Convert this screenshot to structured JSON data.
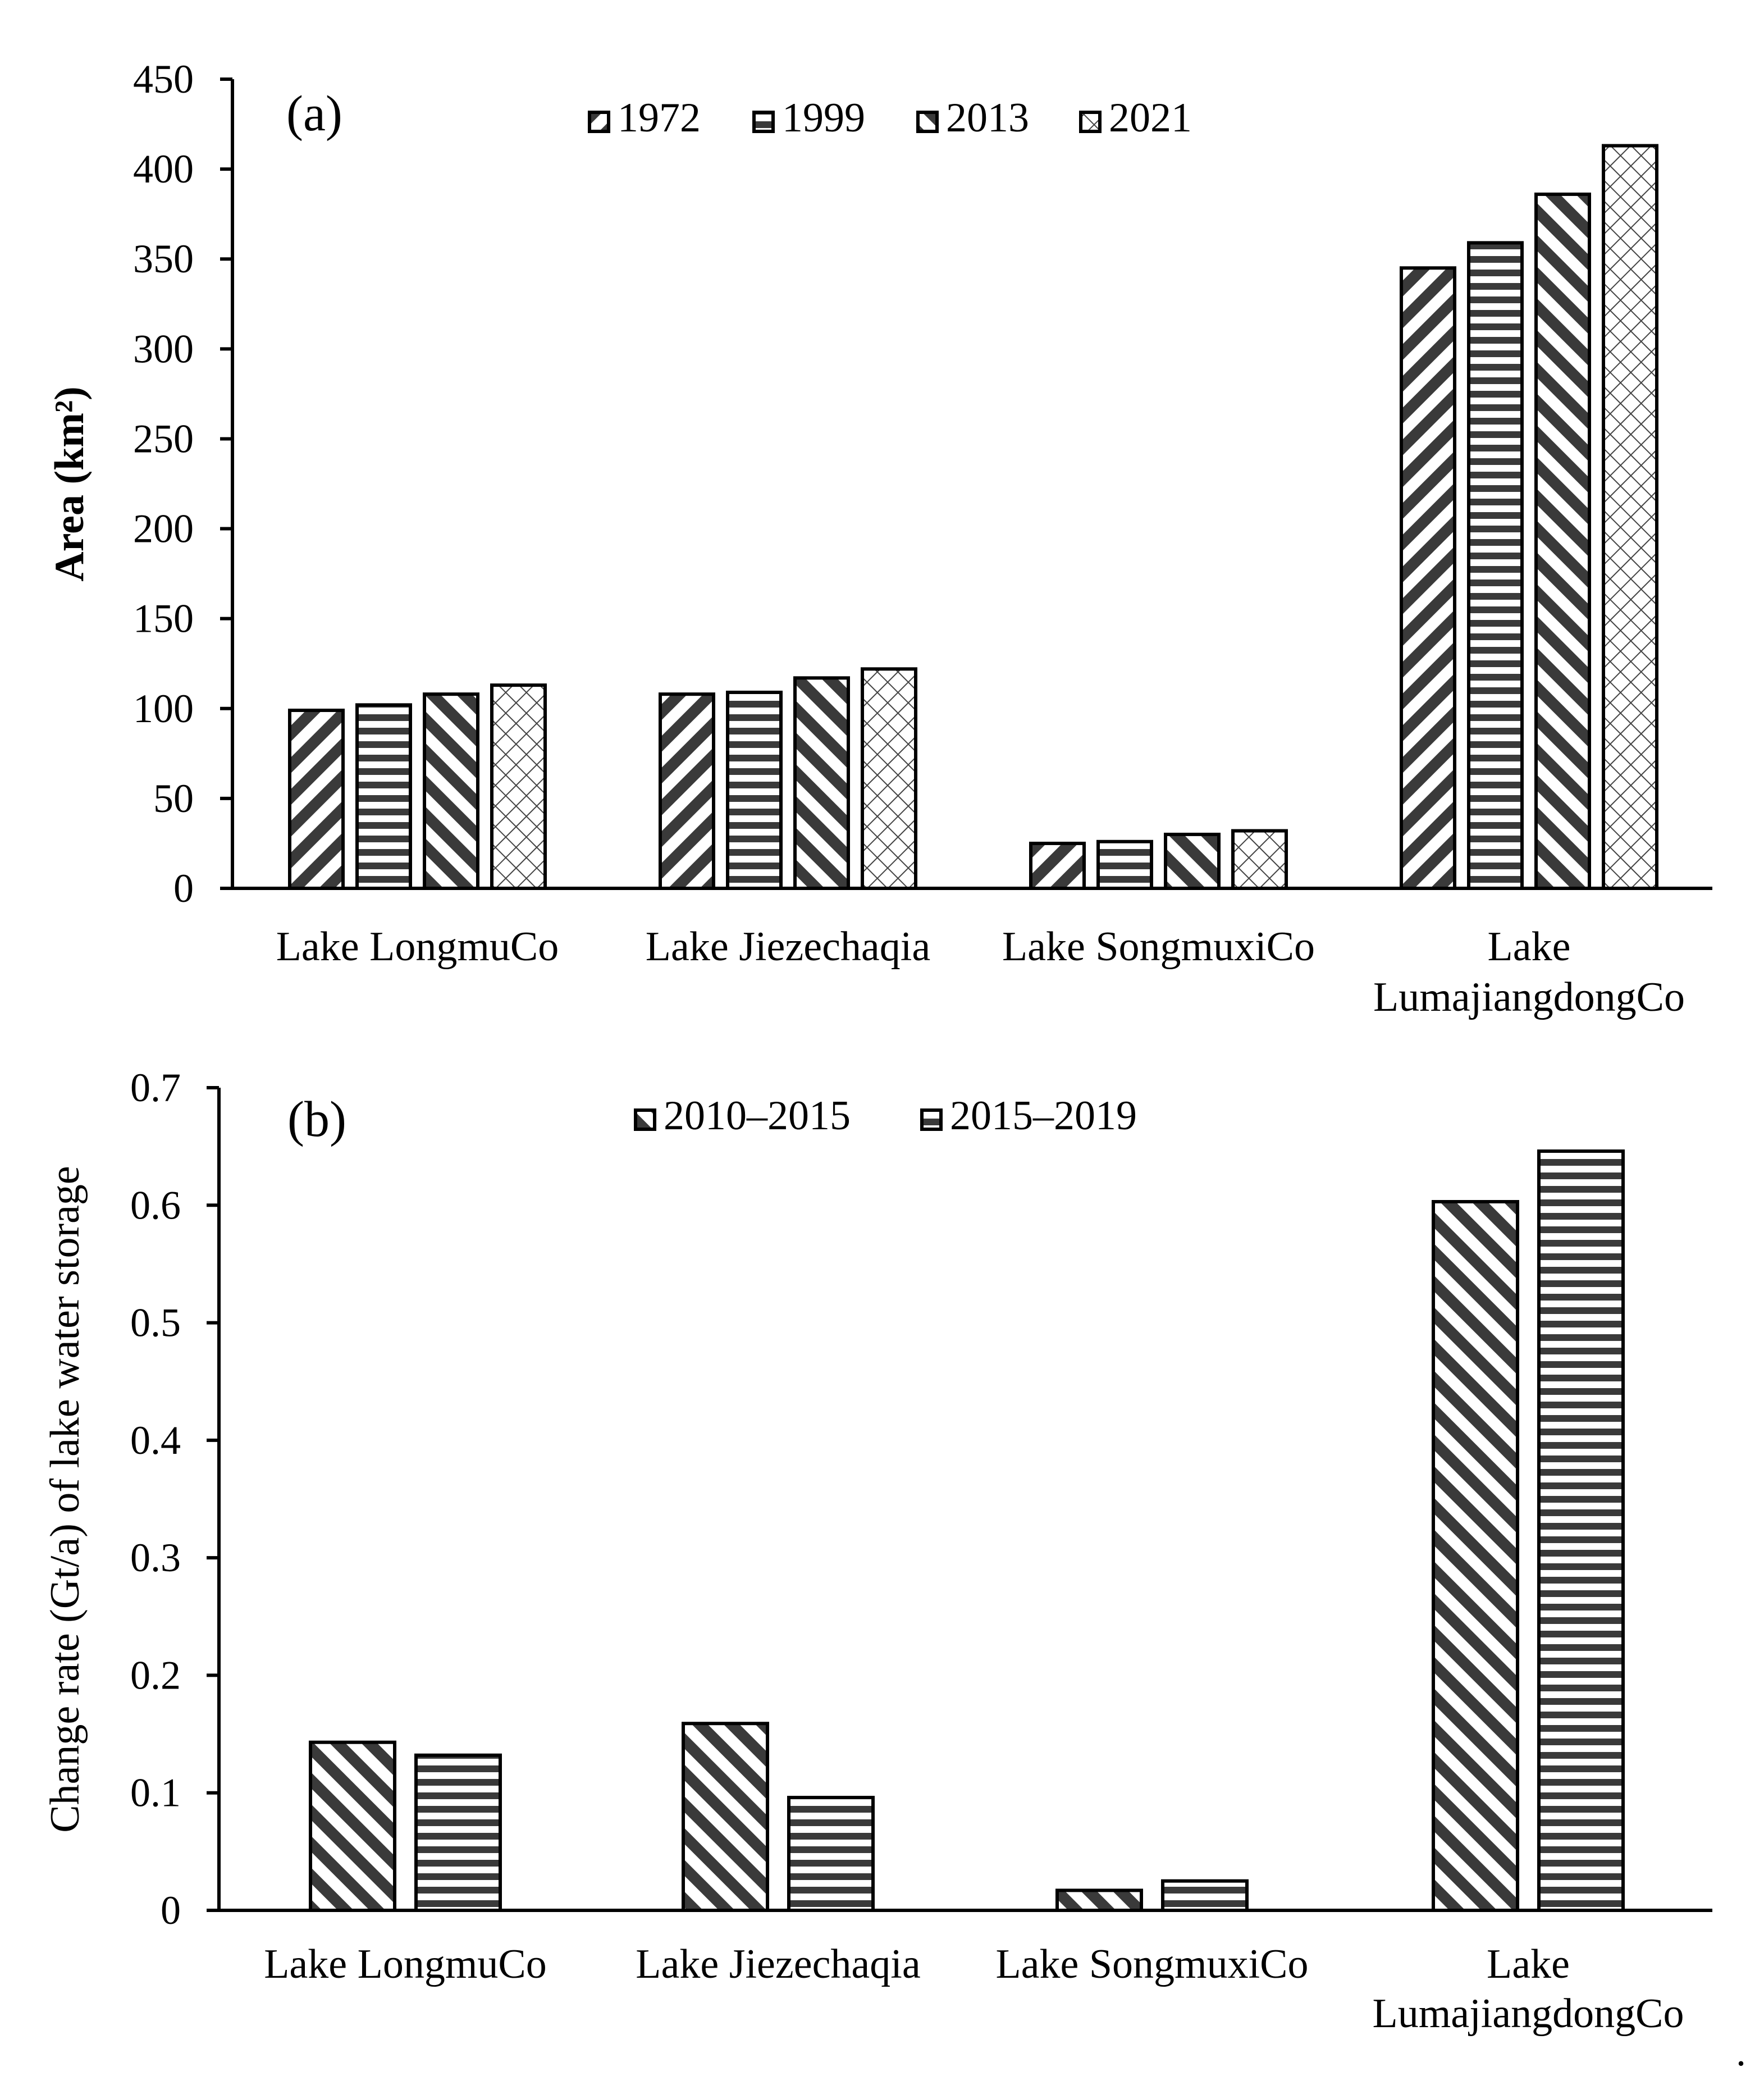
{
  "chart_data": [
    {
      "type": "bar",
      "panel_label": "(a)",
      "ylabel": "Area (km²)",
      "ylim": [
        0,
        450
      ],
      "yticks": [
        "0",
        "50",
        "100",
        "150",
        "200",
        "250",
        "300",
        "350",
        "400",
        "450"
      ],
      "categories": [
        "Lake LongmuCo",
        "Lake Jiezechaqia",
        "Lake SongmuxiCo",
        "Lake LumajiangdongCo"
      ],
      "category_lines": [
        [
          "Lake LongmuCo"
        ],
        [
          "Lake Jiezechaqia"
        ],
        [
          "Lake SongmuxiCo"
        ],
        [
          "Lake",
          "LumajiangdongCo"
        ]
      ],
      "legend_position": "top-center",
      "series": [
        {
          "name": "1972",
          "pattern": "back-diagonal",
          "values": [
            99,
            108,
            25,
            345
          ]
        },
        {
          "name": "1999",
          "pattern": "horizontal",
          "values": [
            102,
            109,
            26,
            359
          ]
        },
        {
          "name": "2013",
          "pattern": "forward-diagonal",
          "values": [
            108,
            117,
            30,
            386
          ]
        },
        {
          "name": "2021",
          "pattern": "crosshatch",
          "values": [
            113,
            122,
            32,
            413
          ]
        }
      ]
    },
    {
      "type": "bar",
      "panel_label": "(b)",
      "ylabel": "Change rate (Gt/a) of lake water storage",
      "ylim": [
        0,
        0.7
      ],
      "yticks": [
        "0",
        "0.1",
        "0.2",
        "0.3",
        "0.4",
        "0.5",
        "0.6",
        "0.7"
      ],
      "categories": [
        "Lake LongmuCo",
        "Lake Jiezechaqia",
        "Lake SongmuxiCo",
        "Lake LumajiangdongCo"
      ],
      "category_lines": [
        [
          "Lake LongmuCo"
        ],
        [
          "Lake Jiezechaqia"
        ],
        [
          "Lake SongmuxiCo"
        ],
        [
          "Lake",
          "LumajiangdongCo"
        ]
      ],
      "legend_position": "top-center",
      "series": [
        {
          "name": "2010–2015",
          "pattern": "forward-diagonal",
          "values": [
            0.143,
            0.159,
            0.017,
            0.603
          ]
        },
        {
          "name": "2015–2019",
          "pattern": "horizontal",
          "values": [
            0.132,
            0.096,
            0.025,
            0.646
          ]
        }
      ]
    }
  ],
  "trailing_mark": "."
}
